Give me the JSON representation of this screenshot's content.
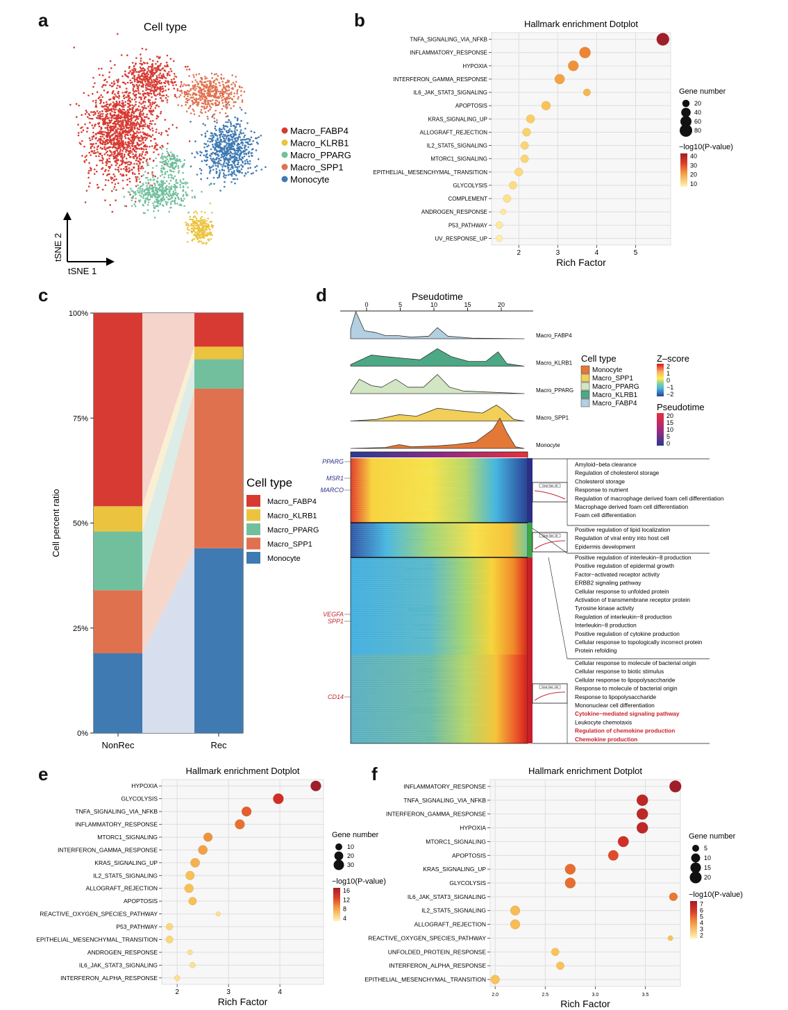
{
  "panel_labels": {
    "a": "a",
    "b": "b",
    "c": "c",
    "d": "d",
    "e": "e",
    "f": "f"
  },
  "colors": {
    "Macro_FABP4": "#d73a32",
    "Macro_KLRB1": "#ecc33e",
    "Macro_PPARG": "#72bf9d",
    "Macro_SPP1": "#e0714f",
    "Monocyte": "#3f7ab3"
  },
  "panel_a": {
    "title": "Cell type",
    "x_axis": "tSNE 1",
    "y_axis": "tSNE 2",
    "legend": [
      "Macro_FABP4",
      "Macro_KLRB1",
      "Macro_PPARG",
      "Macro_SPP1",
      "Monocyte"
    ]
  },
  "panel_b": {
    "title": "Hallmark enrichment Dotplot",
    "xlabel": "Rich Factor",
    "size_legend_title": "Gene number",
    "size_legend": [
      20,
      40,
      60,
      80
    ],
    "color_legend_title": "−log10(P-value)",
    "color_legend": [
      40,
      30,
      20,
      10
    ],
    "xticks": [
      "2",
      "3",
      "4",
      "5"
    ]
  },
  "panel_c": {
    "ylabel": "Cell percent ratio",
    "legend_title": "Cell type",
    "yticks": [
      "0%",
      "25%",
      "50%",
      "75%",
      "100%"
    ],
    "categories": [
      "NonRec",
      "Rec"
    ]
  },
  "panel_d": {
    "pseudotime_title": "Pseudotime",
    "pseudotime_ticks": [
      "0",
      "5",
      "10",
      "15",
      "20"
    ],
    "ridge_labels": [
      "Macro_FABP4",
      "Macro_KLRB1",
      "Macro_PPARG",
      "Macro_SPP1",
      "Monocyte"
    ],
    "legend_celltype_title": "Cell type",
    "legend_celltype": [
      "Monocyte",
      "Macro_SPP1",
      "Macro_PPARG",
      "Macro_KLRB1",
      "Macro_FABP4"
    ],
    "zscore_title": "Z–score",
    "zscore_ticks": [
      "2",
      "1",
      "0",
      "−1",
      "−2"
    ],
    "pseudo_legend_title": "Pseudotime",
    "pseudo_legend_ticks": [
      "20",
      "15",
      "10",
      "5",
      "0"
    ],
    "genes": [
      {
        "name": "PPARG",
        "color": "#2b2f86"
      },
      {
        "name": "MSR1",
        "color": "#2b2f86"
      },
      {
        "name": "MARCO",
        "color": "#2b2f86"
      },
      {
        "name": "VEGFA",
        "color": "#c0262d"
      },
      {
        "name": "SPP1",
        "color": "#c0262d"
      },
      {
        "name": "CD14",
        "color": "#c0262d"
      }
    ],
    "cluster_boxes": [
      "Gene Size: 48",
      "Gene Size: 28",
      "Gene Size: 135"
    ],
    "terms_group1": [
      "Amyloid−beta clearance",
      "Regulation of cholesterol storage",
      "Cholesterol storage",
      "Response to nutrient",
      "Regulation of macrophage derived foam cell differentiation",
      "Macrophage derived foam cell differentiation",
      "Foam cell differentiation"
    ],
    "terms_group2": [
      "Positive regulation of lipid localization",
      "Regulation of viral entry into host cell",
      "Epidermis development"
    ],
    "terms_group3": [
      "Positive regulation of interleukin−8 production",
      "Positive regulation of epidermal growth",
      "Factor−activated receptor activity",
      "ERBB2 signaling pathway",
      "Cellular response to unfolded protein",
      "Activation of transmembrane receptor protein",
      "Tyrosine kinase activity",
      "Regulation of interleukin−8 production",
      "Interleukin−8 production",
      "Positive regulation of cytokine production",
      "Cellular response to topologically incorrect protein",
      "Protein refolding"
    ],
    "terms_group4": [
      "Cellular response to molecule of bacterial origin",
      "Cellular response to biotic stimulus",
      "Cellular response to lipopolysaccharide",
      "Response to molecule of bacterial origin",
      "Response to lipopolysaccharide",
      "Mononuclear cell differentiation",
      "Cytokine−mediated signaling pathway",
      "Leukocyte chemotaxis",
      "Regulation of chemokine production",
      "Chemokine production"
    ],
    "terms_group4_red": [
      "Cytokine−mediated signaling pathway",
      "Regulation of chemokine production",
      "Chemokine production"
    ]
  },
  "panel_e": {
    "title": "Hallmark enrichment Dotplot",
    "xlabel": "Rich Factor",
    "size_legend_title": "Gene number",
    "size_legend": [
      10,
      20,
      30
    ],
    "color_legend_title": "−log10(P-value)",
    "color_legend": [
      16,
      12,
      8,
      4
    ],
    "xticks": [
      "2",
      "3",
      "4"
    ]
  },
  "panel_f": {
    "title": "Hallmark enrichment Dotplot",
    "xlabel": "Rich Factor",
    "size_legend_title": "Gene number",
    "size_legend": [
      5,
      10,
      15,
      20
    ],
    "color_legend_title": "−log10(P-value)",
    "color_legend": [
      7,
      6,
      5,
      4,
      3,
      2
    ],
    "xticks": [
      "2.0",
      "2.5",
      "3.0",
      "3.5"
    ]
  },
  "chart_data": [
    {
      "id": "b",
      "type": "scatter",
      "title": "Hallmark enrichment Dotplot",
      "xlabel": "Rich Factor",
      "ylabel": "",
      "xlim": [
        1.3,
        5.9
      ],
      "categories": [
        "TNFA_SIGNALING_VIA_NFKB",
        "INFLAMMATORY_RESPONSE",
        "HYPOXIA",
        "INTERFERON_GAMMA_RESPONSE",
        "IL6_JAK_STAT3_SIGNALING",
        "APOPTOSIS",
        "KRAS_SIGNALING_UP",
        "ALLOGRAFT_REJECTION",
        "IL2_STAT5_SIGNALING",
        "MTORC1_SIGNALING",
        "EPITHELIAL_MESENCHYMAL_TRANSITION",
        "GLYCOLYSIS",
        "COMPLEMENT",
        "ANDROGEN_RESPONSE",
        "P53_PATHWAY",
        "UV_RESPONSE_UP"
      ],
      "rich_factor": [
        5.7,
        3.7,
        3.4,
        3.05,
        3.75,
        2.7,
        2.3,
        2.2,
        2.15,
        2.15,
        2.0,
        1.85,
        1.7,
        1.6,
        1.5,
        1.5
      ],
      "gene_number": [
        80,
        60,
        50,
        45,
        20,
        35,
        30,
        28,
        25,
        25,
        28,
        25,
        25,
        10,
        18,
        15
      ],
      "neglog10p": [
        45,
        22,
        20,
        17,
        14,
        12,
        10,
        9,
        8,
        8,
        7,
        6,
        5,
        3,
        3,
        2
      ],
      "size_max": 80,
      "color_max": 45
    },
    {
      "id": "e",
      "type": "scatter",
      "title": "Hallmark enrichment Dotplot",
      "xlabel": "Rich Factor",
      "ylabel": "",
      "xlim": [
        1.7,
        4.85
      ],
      "categories": [
        "HYPOXIA",
        "GLYCOLYSIS",
        "TNFA_SIGNALING_VIA_NFKB",
        "INFLAMMATORY_RESPONSE",
        "MTORC1_SIGNALING",
        "INTERFERON_GAMMA_RESPONSE",
        "KRAS_SIGNALING_UP",
        "IL2_STAT5_SIGNALING",
        "ALLOGRAFT_REJECTION",
        "APOPTOSIS",
        "REACTIVE_OXYGEN_SPECIES_PATHWAY",
        "P53_PATHWAY",
        "EPITHELIAL_MESENCHYMAL_TRANSITION",
        "ANDROGEN_RESPONSE",
        "IL6_JAK_STAT3_SIGNALING",
        "INTERFERON_ALPHA_RESPONSE"
      ],
      "rich_factor": [
        4.7,
        3.97,
        3.35,
        3.22,
        2.6,
        2.5,
        2.35,
        2.25,
        2.23,
        2.3,
        2.8,
        1.85,
        1.85,
        2.25,
        2.3,
        2.0
      ],
      "gene_number": [
        30,
        30,
        25,
        25,
        20,
        22,
        22,
        20,
        20,
        15,
        3,
        10,
        12,
        4,
        6,
        5
      ],
      "neglog10p": [
        18,
        14,
        11,
        10,
        8,
        7,
        6,
        5,
        5,
        5,
        2,
        3,
        3,
        2,
        2,
        2
      ],
      "size_max": 30,
      "color_max": 18
    },
    {
      "id": "f",
      "type": "scatter",
      "title": "Hallmark enrichment Dotplot",
      "xlabel": "Rich Factor",
      "ylabel": "",
      "xlim": [
        1.95,
        3.85
      ],
      "categories": [
        "INFLAMMATORY_RESPONSE",
        "TNFA_SIGNALING_VIA_NFKB",
        "INTERFERON_GAMMA_RESPONSE",
        "HYPOXIA",
        "MTORC1_SIGNALING",
        "APOPTOSIS",
        "KRAS_SIGNALING_UP",
        "GLYCOLYSIS",
        "IL6_JAK_STAT3_SIGNALING",
        "IL2_STAT5_SIGNALING",
        "ALLOGRAFT_REJECTION",
        "REACTIVE_OXYGEN_SPECIES_PATHWAY",
        "UNFOLDED_PROTEIN_RESPONSE",
        "INTERFERON_ALPHA_RESPONSE",
        "EPITHELIAL_MESENCHYMAL_TRANSITION"
      ],
      "rich_factor": [
        3.8,
        3.47,
        3.47,
        3.47,
        3.28,
        3.18,
        2.75,
        2.75,
        3.78,
        2.2,
        2.2,
        3.75,
        2.6,
        2.65,
        2.0
      ],
      "gene_number": [
        20,
        18,
        18,
        18,
        16,
        14,
        15,
        15,
        8,
        12,
        12,
        2,
        7,
        7,
        10
      ],
      "neglog10p": [
        7.5,
        6.5,
        6.5,
        6.5,
        5.8,
        5.0,
        4.2,
        4.2,
        4.0,
        2.2,
        2.2,
        2.0,
        2.0,
        2.0,
        2.0
      ],
      "size_max": 20,
      "color_max": 7.5
    },
    {
      "id": "c",
      "type": "bar",
      "stacked": true,
      "ylabel": "Cell percent ratio",
      "ylim": [
        0,
        100
      ],
      "categories": [
        "NonRec",
        "Rec"
      ],
      "series": [
        {
          "name": "Monocyte",
          "values": [
            19,
            44
          ]
        },
        {
          "name": "Macro_SPP1",
          "values": [
            15,
            38
          ]
        },
        {
          "name": "Macro_PPARG",
          "values": [
            14,
            7
          ]
        },
        {
          "name": "Macro_KLRB1",
          "values": [
            6,
            3
          ]
        },
        {
          "name": "Macro_FABP4",
          "values": [
            46,
            8
          ]
        }
      ]
    }
  ]
}
